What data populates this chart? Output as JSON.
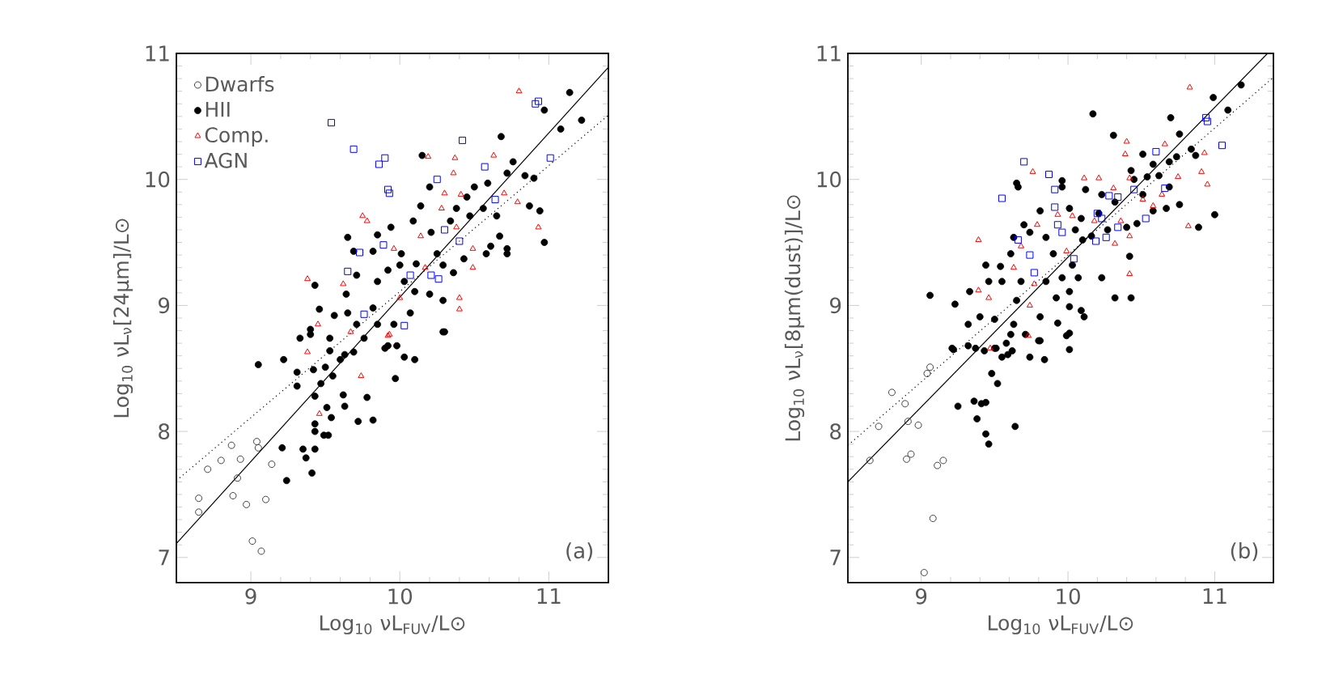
{
  "chart_data": [
    {
      "type": "scatter",
      "xlabel": "Log$_{10}$ νL$_{FUV}$/L⊙",
      "ylabel": "Log$_{10}$  νL$_{ν}$[24μm]/L⊙",
      "xlim": [
        8.5,
        11.4
      ],
      "ylim": [
        6.8,
        11
      ],
      "xticks": [
        9,
        10,
        11
      ],
      "yticks": [
        7,
        8,
        9,
        10,
        11
      ],
      "grid": false,
      "legend": "top left",
      "annotations": [
        "(a)"
      ],
      "series": [
        {
          "name": "Dwarfs",
          "color": "#404040",
          "marker": "circle",
          "x": [
            8.65,
            8.65,
            8.71,
            8.8,
            8.87,
            8.93,
            8.91,
            8.88,
            8.97,
            9.04,
            9.05,
            9.14,
            9.1,
            9.01,
            9.07
          ],
          "values": [
            7.47,
            7.36,
            7.7,
            7.77,
            7.89,
            7.78,
            7.63,
            7.49,
            7.42,
            7.92,
            7.87,
            7.74,
            7.46,
            7.13,
            7.05
          ]
        },
        {
          "name": "HII",
          "color": "#000000",
          "marker": "circle",
          "x": [
            11.14,
            10.97,
            11.08,
            11.22,
            10.68,
            10.76,
            10.72,
            10.84,
            10.9,
            10.59,
            10.5,
            10.45,
            10.38,
            10.47,
            10.56,
            10.65,
            10.67,
            10.61,
            10.72,
            10.87,
            10.94,
            10.97,
            10.15,
            10.2,
            10.14,
            10.09,
            9.94,
            9.85,
            9.65,
            9.69,
            9.82,
            10.01,
            10.0,
            10.11,
            10.25,
            10.29,
            10.36,
            10.43,
            10.58,
            10.72,
            10.21,
            10.34,
            9.43,
            9.64,
            9.71,
            9.85,
            9.92,
            10.03,
            10.1,
            10.2,
            10.29,
            9.46,
            9.56,
            9.65,
            9.71,
            9.82,
            9.85,
            9.96,
            10.07,
            10.29,
            9.4,
            9.33,
            9.53,
            9.76,
            9.92,
            9.05,
            9.22,
            9.4,
            9.31,
            9.31,
            9.42,
            9.47,
            9.5,
            9.53,
            9.55,
            9.6,
            9.63,
            9.69,
            9.62,
            9.63,
            9.72,
            9.82,
            9.78,
            9.43,
            9.43,
            9.43,
            9.51,
            9.49,
            9.21,
            9.35,
            9.37,
            9.43,
            9.41,
            9.24,
            9.52,
            9.54,
            9.9,
            9.98,
            10.03,
            10.1,
            9.97,
            10.3
          ],
          "values": [
            10.69,
            10.55,
            10.4,
            10.47,
            10.34,
            10.14,
            10.05,
            10.03,
            10.01,
            9.97,
            9.94,
            9.86,
            9.77,
            9.71,
            9.77,
            9.71,
            9.55,
            9.47,
            9.45,
            9.79,
            9.75,
            9.5,
            10.19,
            9.94,
            9.79,
            9.67,
            9.62,
            9.56,
            9.54,
            9.43,
            9.43,
            9.41,
            9.32,
            9.33,
            9.41,
            9.32,
            9.26,
            9.37,
            9.41,
            9.41,
            9.58,
            9.67,
            9.16,
            9.09,
            9.24,
            9.19,
            9.28,
            9.19,
            9.11,
            9.09,
            9.04,
            8.97,
            8.92,
            8.94,
            8.85,
            8.98,
            8.85,
            8.85,
            8.94,
            8.79,
            8.81,
            8.74,
            8.74,
            8.74,
            8.68,
            8.53,
            8.57,
            8.77,
            8.47,
            8.36,
            8.49,
            8.38,
            8.51,
            8.64,
            8.44,
            8.57,
            8.61,
            8.63,
            8.29,
            8.2,
            8.08,
            8.09,
            8.27,
            8.28,
            8.06,
            8.0,
            8.19,
            7.97,
            7.87,
            7.86,
            7.79,
            7.86,
            7.67,
            7.61,
            7.97,
            8.11,
            8.66,
            8.68,
            8.59,
            8.57,
            8.42,
            8.79
          ]
        },
        {
          "name": "Comp.",
          "color": "#ff0000",
          "marker": "triangle",
          "x": [
            10.8,
            10.19,
            10.37,
            10.63,
            10.36,
            10.3,
            9.75,
            9.78,
            10.14,
            10.41,
            10.7,
            10.79,
            10.93,
            10.28,
            10.49,
            10.49,
            9.96,
            10.17,
            9.38,
            9.62,
            9.45,
            9.67,
            9.38,
            10.4,
            10.4,
            10.0,
            9.92,
            10.38,
            9.74,
            9.46,
            9.93
          ],
          "values": [
            10.7,
            10.18,
            10.17,
            10.19,
            10.05,
            9.89,
            9.71,
            9.67,
            9.55,
            9.88,
            9.89,
            9.82,
            9.62,
            9.77,
            9.45,
            9.3,
            9.45,
            9.3,
            9.21,
            9.17,
            8.85,
            8.79,
            8.63,
            9.06,
            8.97,
            9.06,
            8.76,
            9.62,
            8.44,
            8.14,
            8.77
          ]
        },
        {
          "name": "AGN",
          "color": "#0000ff",
          "marker": "square",
          "x": [
            9.54,
            9.69,
            9.86,
            9.9,
            9.92,
            9.93,
            10.42,
            10.57,
            10.25,
            10.91,
            10.93,
            11.01,
            9.73,
            9.65,
            9.89,
            9.76,
            10.07,
            10.21,
            10.26,
            10.3,
            10.4,
            10.03,
            10.64
          ],
          "values": [
            10.45,
            10.24,
            10.12,
            10.17,
            9.92,
            9.89,
            10.31,
            10.1,
            10.0,
            10.6,
            10.62,
            10.17,
            9.42,
            9.27,
            9.48,
            8.93,
            9.24,
            9.24,
            9.21,
            9.6,
            9.51,
            8.84,
            9.84
          ]
        },
        {
          "type": "line",
          "color": "#000000",
          "line_style": "solid",
          "x": [
            8.5,
            11.4
          ],
          "values": [
            7.11,
            10.89
          ]
        },
        {
          "type": "line",
          "color": "#000000",
          "line_style": "dotted",
          "x": [
            8.5,
            11.4
          ],
          "values": [
            7.61,
            10.51
          ]
        }
      ]
    },
    {
      "type": "scatter",
      "xlabel": "Log$_{10}$ νL$_{FUV}$/L⊙",
      "ylabel": "Log$_{10}$  νL$_{ν}$[8μm(dust)]/L⊙",
      "xlim": [
        8.5,
        11.4
      ],
      "ylim": [
        6.8,
        11
      ],
      "xticks": [
        9,
        10,
        11
      ],
      "yticks": [
        7,
        8,
        9,
        10,
        11
      ],
      "grid": false,
      "legend": false,
      "annotations": [
        "(b)"
      ],
      "series": [
        {
          "color": "#404040",
          "marker": "circle",
          "x": [
            8.65,
            8.71,
            8.8,
            8.89,
            8.91,
            8.98,
            8.9,
            8.93,
            9.04,
            9.06,
            9.11,
            9.15,
            9.08,
            9.02
          ],
          "values": [
            7.77,
            8.04,
            8.31,
            8.22,
            8.08,
            8.05,
            7.78,
            7.82,
            8.46,
            8.51,
            7.73,
            7.77,
            7.31,
            6.88
          ]
        },
        {
          "color": "#000000",
          "marker": "circle",
          "x": [
            10.99,
            11.18,
            11.09,
            10.7,
            10.76,
            10.84,
            10.87,
            10.74,
            10.69,
            10.58,
            10.51,
            10.43,
            10.45,
            10.54,
            10.62,
            10.69,
            10.76,
            10.67,
            10.58,
            10.51,
            11.0,
            10.89,
            10.31,
            10.17,
            9.96,
            9.96,
            9.66,
            9.65,
            9.7,
            9.81,
            10.01,
            10.12,
            10.23,
            10.32,
            10.21,
            10.09,
            10.05,
            10.1,
            10.16,
            10.27,
            10.4,
            10.47,
            10.42,
            10.23,
            10.07,
            10.01,
            10.03,
            9.9,
            9.85,
            9.74,
            9.63,
            9.61,
            9.54,
            9.44,
            9.46,
            9.55,
            9.68,
            9.65,
            9.85,
            9.92,
            9.96,
            10.09,
            10.43,
            10.32,
            9.06,
            9.23,
            9.33,
            9.32,
            9.4,
            9.5,
            9.63,
            9.81,
            9.93,
            10.01,
            10.11,
            9.99,
            9.21,
            9.37,
            9.51,
            9.59,
            9.81,
            9.22,
            9.32,
            9.43,
            9.5,
            9.55,
            9.58,
            9.62,
            9.61,
            9.71,
            9.8,
            9.74,
            9.84,
            10.01,
            10.01,
            9.48,
            9.52,
            9.25,
            9.36,
            9.41,
            9.44,
            9.38,
            9.44,
            9.46,
            9.64
          ],
          "values": [
            10.65,
            10.75,
            10.55,
            10.49,
            10.36,
            10.24,
            10.19,
            10.18,
            10.14,
            10.12,
            10.2,
            10.07,
            10.0,
            10.02,
            10.03,
            9.94,
            9.8,
            9.77,
            9.75,
            9.88,
            9.72,
            9.62,
            10.35,
            10.52,
            9.99,
            9.94,
            9.94,
            9.97,
            9.64,
            9.75,
            9.77,
            9.92,
            9.88,
            9.82,
            9.73,
            9.69,
            9.6,
            9.52,
            9.55,
            9.6,
            9.62,
            9.65,
            9.39,
            9.22,
            9.22,
            9.11,
            9.32,
            9.41,
            9.54,
            9.58,
            9.54,
            9.41,
            9.31,
            9.32,
            9.19,
            9.19,
            9.19,
            9.04,
            9.19,
            9.06,
            9.22,
            8.96,
            9.06,
            9.06,
            9.08,
            9.01,
            9.11,
            8.85,
            8.91,
            8.89,
            8.85,
            8.91,
            8.86,
            8.99,
            8.91,
            8.76,
            8.66,
            8.66,
            8.66,
            8.61,
            8.72,
            8.65,
            8.68,
            8.64,
            8.66,
            8.59,
            8.7,
            8.64,
            8.77,
            8.77,
            8.72,
            8.59,
            8.57,
            8.65,
            8.78,
            8.46,
            8.38,
            8.2,
            8.24,
            8.22,
            8.23,
            8.1,
            7.98,
            7.9,
            8.04
          ]
        },
        {
          "color": "#ff0000",
          "marker": "triangle",
          "x": [
            10.83,
            10.39,
            10.4,
            10.66,
            10.93,
            10.91,
            10.95,
            10.75,
            10.82,
            9.76,
            9.39,
            9.39,
            9.46,
            9.63,
            9.68,
            9.79,
            9.74,
            9.73,
            9.77,
            9.93,
            10.03,
            10.11,
            10.21,
            10.31,
            10.42,
            10.36,
            10.42,
            10.32,
            10.42,
            9.99,
            10.51,
            10.58,
            10.64,
            10.18,
            9.47
          ],
          "values": [
            10.73,
            10.2,
            10.3,
            10.28,
            10.21,
            10.06,
            9.96,
            10.02,
            9.63,
            10.06,
            9.52,
            9.12,
            9.06,
            9.3,
            9.47,
            9.64,
            9.0,
            8.76,
            9.17,
            9.72,
            9.71,
            10.01,
            10.01,
            9.93,
            10.01,
            9.67,
            9.55,
            9.49,
            9.25,
            9.43,
            9.84,
            9.79,
            9.88,
            9.67,
            8.66
          ]
        },
        {
          "color": "#0000ff",
          "marker": "square",
          "x": [
            9.7,
            9.87,
            9.91,
            9.55,
            9.91,
            9.93,
            9.96,
            9.66,
            9.74,
            9.77,
            10.04,
            10.2,
            10.28,
            10.34,
            10.45,
            10.23,
            10.26,
            10.19,
            10.34,
            10.53,
            10.6,
            10.66,
            10.94,
            10.95,
            11.05
          ],
          "values": [
            10.14,
            10.04,
            9.92,
            9.85,
            9.78,
            9.64,
            9.58,
            9.52,
            9.4,
            9.26,
            9.37,
            9.73,
            9.87,
            9.86,
            9.92,
            9.69,
            9.54,
            9.51,
            9.62,
            9.69,
            10.22,
            9.93,
            10.49,
            10.46,
            10.27
          ]
        },
        {
          "type": "line",
          "color": "#000000",
          "line_style": "solid",
          "x": [
            8.5,
            11.36
          ],
          "values": [
            7.6,
            11.0
          ]
        },
        {
          "type": "line",
          "color": "#000000",
          "line_style": "dotted",
          "x": [
            8.5,
            11.4
          ],
          "values": [
            7.89,
            10.81
          ]
        }
      ]
    }
  ]
}
